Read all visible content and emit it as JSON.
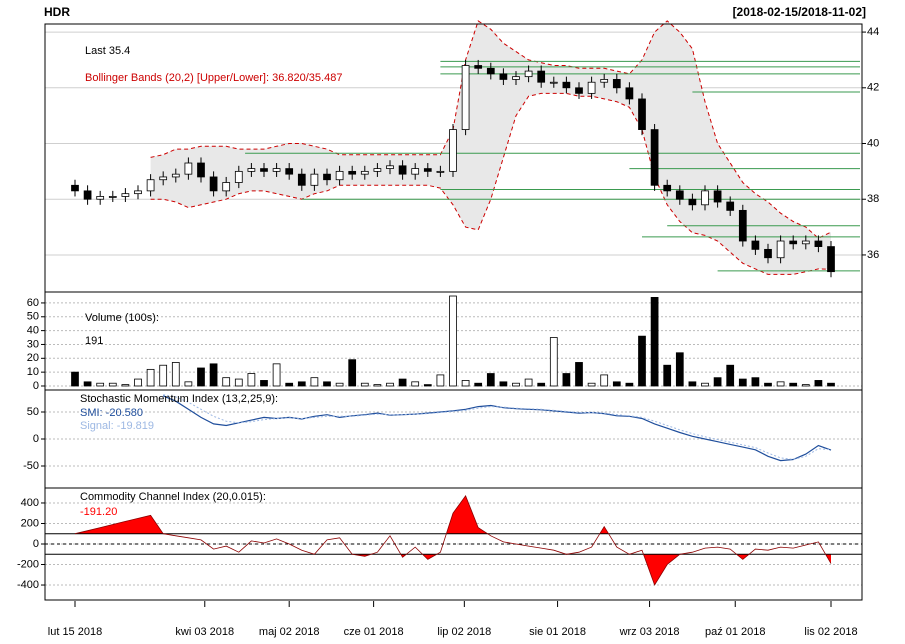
{
  "title": "HDR",
  "date_range": "[2018-02-15/2018-11-02]",
  "chart_data": [
    {
      "type": "candlestick",
      "y_axis_side": "right",
      "up_color": "#ffffff",
      "down_color": "#000000",
      "last_label": "Last 35.4",
      "bands_label": "Bollinger Bands (20,2) [Upper/Lower]: 36.820/35.487",
      "ohlc": [
        [
          38.5,
          38.7,
          38.1,
          38.3
        ],
        [
          38.3,
          38.5,
          37.8,
          38.0
        ],
        [
          38.0,
          38.3,
          37.8,
          38.1
        ],
        [
          38.1,
          38.3,
          37.9,
          38.1
        ],
        [
          38.1,
          38.4,
          37.9,
          38.2
        ],
        [
          38.2,
          38.5,
          38.0,
          38.3
        ],
        [
          38.3,
          38.9,
          38.1,
          38.7
        ],
        [
          38.7,
          39.0,
          38.5,
          38.8
        ],
        [
          38.8,
          39.1,
          38.6,
          38.9
        ],
        [
          38.9,
          39.5,
          38.7,
          39.3
        ],
        [
          39.3,
          39.5,
          38.6,
          38.8
        ],
        [
          38.8,
          39.0,
          38.1,
          38.3
        ],
        [
          38.3,
          38.8,
          38.1,
          38.6
        ],
        [
          38.6,
          39.2,
          38.4,
          39.0
        ],
        [
          39.0,
          39.3,
          38.8,
          39.1
        ],
        [
          39.1,
          39.3,
          38.8,
          39.0
        ],
        [
          39.0,
          39.3,
          38.8,
          39.1
        ],
        [
          39.1,
          39.3,
          38.7,
          38.9
        ],
        [
          38.9,
          39.1,
          38.3,
          38.5
        ],
        [
          38.5,
          39.1,
          38.3,
          38.9
        ],
        [
          38.9,
          39.1,
          38.5,
          38.7
        ],
        [
          38.7,
          39.2,
          38.5,
          39.0
        ],
        [
          39.0,
          39.2,
          38.7,
          38.9
        ],
        [
          38.9,
          39.2,
          38.7,
          39.0
        ],
        [
          39.0,
          39.3,
          38.8,
          39.1
        ],
        [
          39.1,
          39.4,
          38.9,
          39.2
        ],
        [
          39.2,
          39.4,
          38.7,
          38.9
        ],
        [
          38.9,
          39.3,
          38.7,
          39.1
        ],
        [
          39.1,
          39.3,
          38.8,
          39.0
        ],
        [
          39.0,
          39.2,
          38.8,
          39.0
        ],
        [
          39.0,
          40.7,
          38.8,
          40.5
        ],
        [
          40.5,
          43.0,
          40.3,
          42.8
        ],
        [
          42.8,
          43.0,
          42.5,
          42.7
        ],
        [
          42.7,
          42.9,
          42.3,
          42.5
        ],
        [
          42.5,
          42.7,
          42.1,
          42.3
        ],
        [
          42.3,
          42.6,
          42.1,
          42.4
        ],
        [
          42.4,
          42.8,
          42.2,
          42.6
        ],
        [
          42.6,
          42.8,
          42.0,
          42.2
        ],
        [
          42.2,
          42.4,
          42.0,
          42.2
        ],
        [
          42.2,
          42.4,
          41.8,
          42.0
        ],
        [
          42.0,
          42.2,
          41.6,
          41.8
        ],
        [
          41.8,
          42.4,
          41.6,
          42.2
        ],
        [
          42.2,
          42.5,
          42.0,
          42.3
        ],
        [
          42.3,
          42.5,
          41.8,
          42.0
        ],
        [
          42.0,
          42.2,
          41.4,
          41.6
        ],
        [
          41.6,
          41.8,
          40.3,
          40.5
        ],
        [
          40.5,
          40.7,
          38.3,
          38.5
        ],
        [
          38.5,
          38.7,
          38.1,
          38.3
        ],
        [
          38.3,
          38.5,
          37.8,
          38.0
        ],
        [
          38.0,
          38.2,
          37.6,
          37.8
        ],
        [
          37.8,
          38.5,
          37.6,
          38.3
        ],
        [
          38.3,
          38.5,
          37.7,
          37.9
        ],
        [
          37.9,
          38.1,
          37.4,
          37.6
        ],
        [
          37.6,
          37.8,
          36.3,
          36.5
        ],
        [
          36.5,
          36.7,
          36.0,
          36.2
        ],
        [
          36.2,
          36.4,
          35.7,
          35.9
        ],
        [
          35.9,
          36.7,
          35.7,
          36.5
        ],
        [
          36.5,
          36.7,
          36.2,
          36.4
        ],
        [
          36.4,
          36.7,
          36.2,
          36.5
        ],
        [
          36.5,
          36.7,
          36.1,
          36.3
        ],
        [
          36.3,
          36.5,
          35.2,
          35.4
        ]
      ],
      "bands": {
        "color": "#cc0000",
        "fill": "#e8e8e8",
        "upper": [
          null,
          null,
          null,
          null,
          null,
          null,
          39.5,
          39.6,
          39.8,
          39.8,
          39.9,
          39.9,
          39.9,
          39.8,
          39.8,
          39.8,
          39.9,
          40.0,
          40.0,
          39.9,
          39.8,
          39.6,
          39.6,
          39.6,
          39.6,
          39.6,
          39.6,
          39.6,
          39.6,
          39.6,
          40.5,
          43.0,
          44.4,
          44.1,
          43.6,
          43.3,
          43.0,
          42.9,
          42.8,
          42.8,
          42.7,
          42.7,
          42.7,
          42.6,
          42.5,
          43.0,
          44.0,
          44.4,
          44.0,
          43.4,
          41.5,
          40.0,
          39.3,
          38.6,
          38.2,
          37.9,
          37.5,
          37.2,
          37.0,
          36.6,
          36.82
        ],
        "lower": [
          null,
          null,
          null,
          null,
          null,
          null,
          38.0,
          38.0,
          37.9,
          37.7,
          37.8,
          37.9,
          38.0,
          38.2,
          38.3,
          38.3,
          38.2,
          38.1,
          38.0,
          38.2,
          38.3,
          38.5,
          38.5,
          38.5,
          38.5,
          38.5,
          38.5,
          38.5,
          38.5,
          38.4,
          37.8,
          37.0,
          36.9,
          38.0,
          39.5,
          41.0,
          41.7,
          41.8,
          41.8,
          41.8,
          41.7,
          41.7,
          41.6,
          41.5,
          41.3,
          40.5,
          38.8,
          37.8,
          37.2,
          36.8,
          36.7,
          36.5,
          36.1,
          35.7,
          35.5,
          35.3,
          35.3,
          35.3,
          35.4,
          35.5,
          35.487
        ]
      },
      "level_color": "#3a9a4f",
      "levels": [
        {
          "value": 42.95,
          "from": 29
        },
        {
          "value": 42.75,
          "from": 29
        },
        {
          "value": 42.5,
          "from": 29
        },
        {
          "value": 41.85,
          "from": 49
        },
        {
          "value": 39.65,
          "from": 13.5
        },
        {
          "value": 39.1,
          "from": 44
        },
        {
          "value": 38.35,
          "from": 29
        },
        {
          "value": 38.0,
          "from": 18
        },
        {
          "value": 37.05,
          "from": 47
        },
        {
          "value": 36.65,
          "from": 45
        },
        {
          "value": 35.43,
          "from": 51
        }
      ],
      "ylim": [
        34.67,
        44.29
      ],
      "yticks": [
        36,
        38,
        40,
        42,
        44
      ],
      "grid": true
    },
    {
      "type": "bar",
      "title": "Volume (100s):",
      "last_value_label": "191",
      "values": [
        10,
        3,
        2,
        2,
        1,
        5,
        12,
        15,
        17,
        3,
        13,
        16,
        6,
        5,
        9,
        4,
        16,
        2,
        3,
        6,
        3,
        2,
        19,
        2,
        1,
        2,
        5,
        3,
        1,
        8,
        65,
        4,
        2,
        9,
        3,
        2,
        5,
        2,
        35,
        9,
        17,
        2,
        8,
        3,
        2,
        36,
        64,
        15,
        24,
        3,
        2,
        6,
        15,
        5,
        6,
        2,
        3,
        2,
        1,
        4,
        2
      ],
      "ylim": [
        -2.9,
        67.9
      ],
      "yticks": [
        0,
        10,
        20,
        30,
        40,
        50,
        60
      ],
      "grid": true
    },
    {
      "type": "line",
      "title": "Stochastic Momentum Index (13,2,25,9):",
      "series": [
        {
          "name": "SMI: -20.580",
          "color": "#1f4e9c",
          "values": [
            null,
            null,
            null,
            null,
            null,
            null,
            null,
            80,
            70,
            55,
            40,
            28,
            25,
            30,
            35,
            40,
            38,
            40,
            37,
            42,
            45,
            40,
            43,
            45,
            48,
            44,
            45,
            46,
            48,
            50,
            52,
            55,
            60,
            62,
            58,
            56,
            55,
            54,
            52,
            50,
            48,
            49,
            47,
            43,
            42,
            38,
            28,
            20,
            12,
            5,
            0,
            -5,
            -10,
            -15,
            -20,
            -32,
            -40,
            -38,
            -28,
            -12,
            -20.58
          ]
        },
        {
          "name": "Signal: -19.819",
          "color": "#9db8e3",
          "dash": true,
          "values": [
            null,
            null,
            null,
            null,
            null,
            null,
            null,
            82,
            78,
            68,
            55,
            42,
            33,
            30,
            32,
            36,
            38,
            39,
            38,
            40,
            42,
            42,
            42,
            44,
            46,
            45,
            45,
            46,
            47,
            49,
            51,
            53,
            57,
            60,
            59,
            57,
            56,
            55,
            53,
            51,
            49,
            49,
            48,
            45,
            43,
            40,
            33,
            25,
            17,
            10,
            4,
            -1,
            -6,
            -11,
            -16,
            -26,
            -35,
            -38,
            -32,
            -18,
            -19.819
          ]
        }
      ],
      "ylim": [
        -90.7,
        90.7
      ],
      "yticks": [
        -50,
        0,
        50
      ],
      "grid": true
    },
    {
      "type": "area",
      "title": "Commodity Channel Index (20,0.015):",
      "last_value_label": "-191.20",
      "color": "#ff0000",
      "line_color": "#8b0000",
      "values": [
        100,
        130,
        160,
        190,
        220,
        250,
        280,
        100,
        80,
        60,
        40,
        -50,
        -20,
        -80,
        30,
        10,
        50,
        0,
        -60,
        -100,
        40,
        60,
        -100,
        -120,
        -80,
        80,
        -130,
        -30,
        -150,
        -80,
        300,
        470,
        160,
        80,
        20,
        0,
        -20,
        -40,
        -60,
        -100,
        -80,
        -30,
        170,
        -30,
        -100,
        -60,
        -400,
        -200,
        -100,
        -80,
        -40,
        -30,
        -50,
        -150,
        -50,
        -60,
        -30,
        -40,
        -10,
        20,
        -191.2
      ],
      "thresholds": [
        100,
        -100
      ],
      "ylim": [
        -546,
        546
      ],
      "yticks": [
        -400,
        -200,
        0,
        200,
        400
      ],
      "grid": true,
      "xlim": [
        -2.38,
        62.46
      ],
      "xticks": [
        {
          "value": 0,
          "label": "lut 15 2018"
        },
        {
          "value": 10.3,
          "label": "kwi 03 2018"
        },
        {
          "value": 17.0,
          "label": "maj 02 2018"
        },
        {
          "value": 23.7,
          "label": "cze 01 2018"
        },
        {
          "value": 30.9,
          "label": "lip 02 2018"
        },
        {
          "value": 38.3,
          "label": "sie 01 2018"
        },
        {
          "value": 45.6,
          "label": "wrz 03 2018"
        },
        {
          "value": 52.4,
          "label": "paź 01 2018"
        },
        {
          "value": 60,
          "label": "lis 02 2018"
        }
      ]
    }
  ]
}
